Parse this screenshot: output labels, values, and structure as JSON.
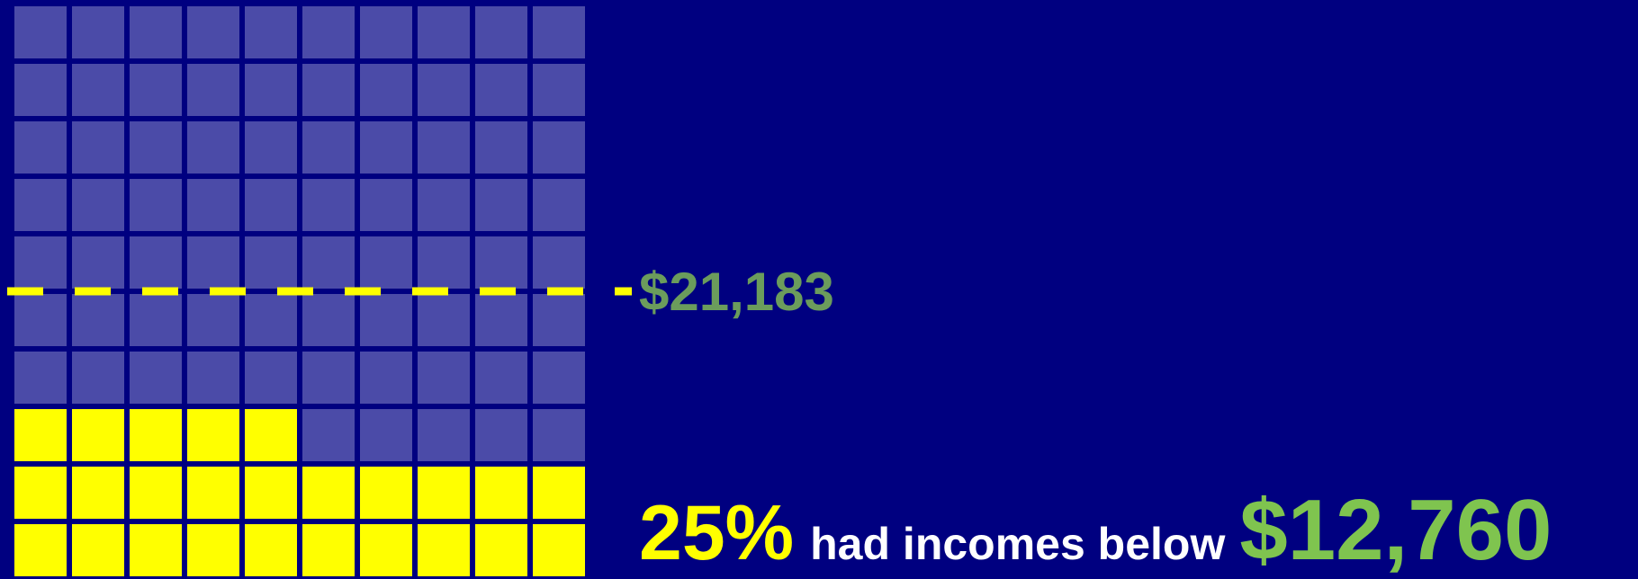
{
  "chart_data": {
    "type": "waffle",
    "values": [
      25
    ],
    "value_labels": [
      "25%"
    ],
    "total": 100,
    "columns": 10,
    "color": "#ffff00",
    "empty_color": "#4b4ba8",
    "background": "#000080",
    "caption": "had incomes below",
    "caption_value": "$12,760",
    "reference": {
      "value": 50,
      "label": "$21,183",
      "color": "#ffff00",
      "label_color": "#6b9c5c"
    },
    "caption_value_color": "#7fc44f"
  }
}
